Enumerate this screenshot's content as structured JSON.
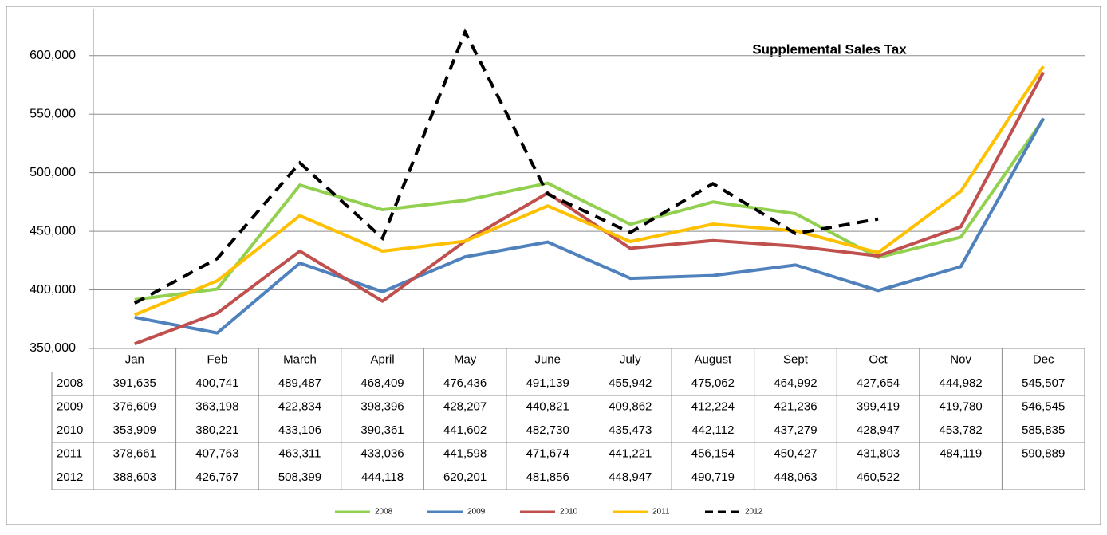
{
  "chart_data": {
    "type": "line",
    "title": "Supplemental Sales Tax",
    "categories": [
      "Jan",
      "Feb",
      "March",
      "April",
      "May",
      "June",
      "July",
      "August",
      "Sept",
      "Oct",
      "Nov",
      "Dec"
    ],
    "series": [
      {
        "name": "2008",
        "color": "#92d050",
        "values": [
          391635,
          400741,
          489487,
          468409,
          476436,
          491139,
          455942,
          475062,
          464992,
          427654,
          444982,
          545507
        ],
        "value_labels": [
          "391,635",
          "400,741",
          "489,487",
          "468,409",
          "476,436",
          "491,139",
          "455,942",
          "475,062",
          "464,992",
          "427,654",
          "444,982",
          "545,507"
        ]
      },
      {
        "name": "2009",
        "color": "#4f81bd",
        "values": [
          376609,
          363198,
          422834,
          398396,
          428207,
          440821,
          409862,
          412224,
          421236,
          399419,
          419780,
          546545
        ],
        "value_labels": [
          "376,609",
          "363,198",
          "422,834",
          "398,396",
          "428,207",
          "440,821",
          "409,862",
          "412,224",
          "421,236",
          "399,419",
          "419,780",
          "546,545"
        ]
      },
      {
        "name": "2010",
        "color": "#c0504d",
        "values": [
          353909,
          380221,
          433106,
          390361,
          441602,
          482730,
          435473,
          442112,
          437279,
          428947,
          453782,
          585835
        ],
        "value_labels": [
          "353,909",
          "380,221",
          "433,106",
          "390,361",
          "441,602",
          "482,730",
          "435,473",
          "442,112",
          "437,279",
          "428,947",
          "453,782",
          "585,835"
        ]
      },
      {
        "name": "2011",
        "color": "#ffc000",
        "values": [
          378661,
          407763,
          463311,
          433036,
          441598,
          471674,
          441221,
          456154,
          450427,
          431803,
          484119,
          590889
        ],
        "value_labels": [
          "378,661",
          "407,763",
          "463,311",
          "433,036",
          "441,598",
          "471,674",
          "441,221",
          "456,154",
          "450,427",
          "431,803",
          "484,119",
          "590,889"
        ]
      },
      {
        "name": "2012",
        "color": "#000000",
        "dash": true,
        "values": [
          388603,
          426767,
          508399,
          444118,
          620201,
          481856,
          448947,
          490719,
          448063,
          460522,
          null,
          null
        ],
        "value_labels": [
          "388,603",
          "426,767",
          "508,399",
          "444,118",
          "620,201",
          "481,856",
          "448,947",
          "490,719",
          "448,063",
          "460,522",
          null,
          null
        ]
      }
    ],
    "ylim": [
      350000,
      640000
    ],
    "yticks": [
      {
        "value": 350000,
        "label": "350,000"
      },
      {
        "value": 400000,
        "label": "400,000"
      },
      {
        "value": 450000,
        "label": "450,000"
      },
      {
        "value": 500000,
        "label": "500,000"
      },
      {
        "value": 550000,
        "label": "550,000"
      },
      {
        "value": 600000,
        "label": "600,000"
      }
    ],
    "grid": true,
    "legend": "bottom"
  }
}
